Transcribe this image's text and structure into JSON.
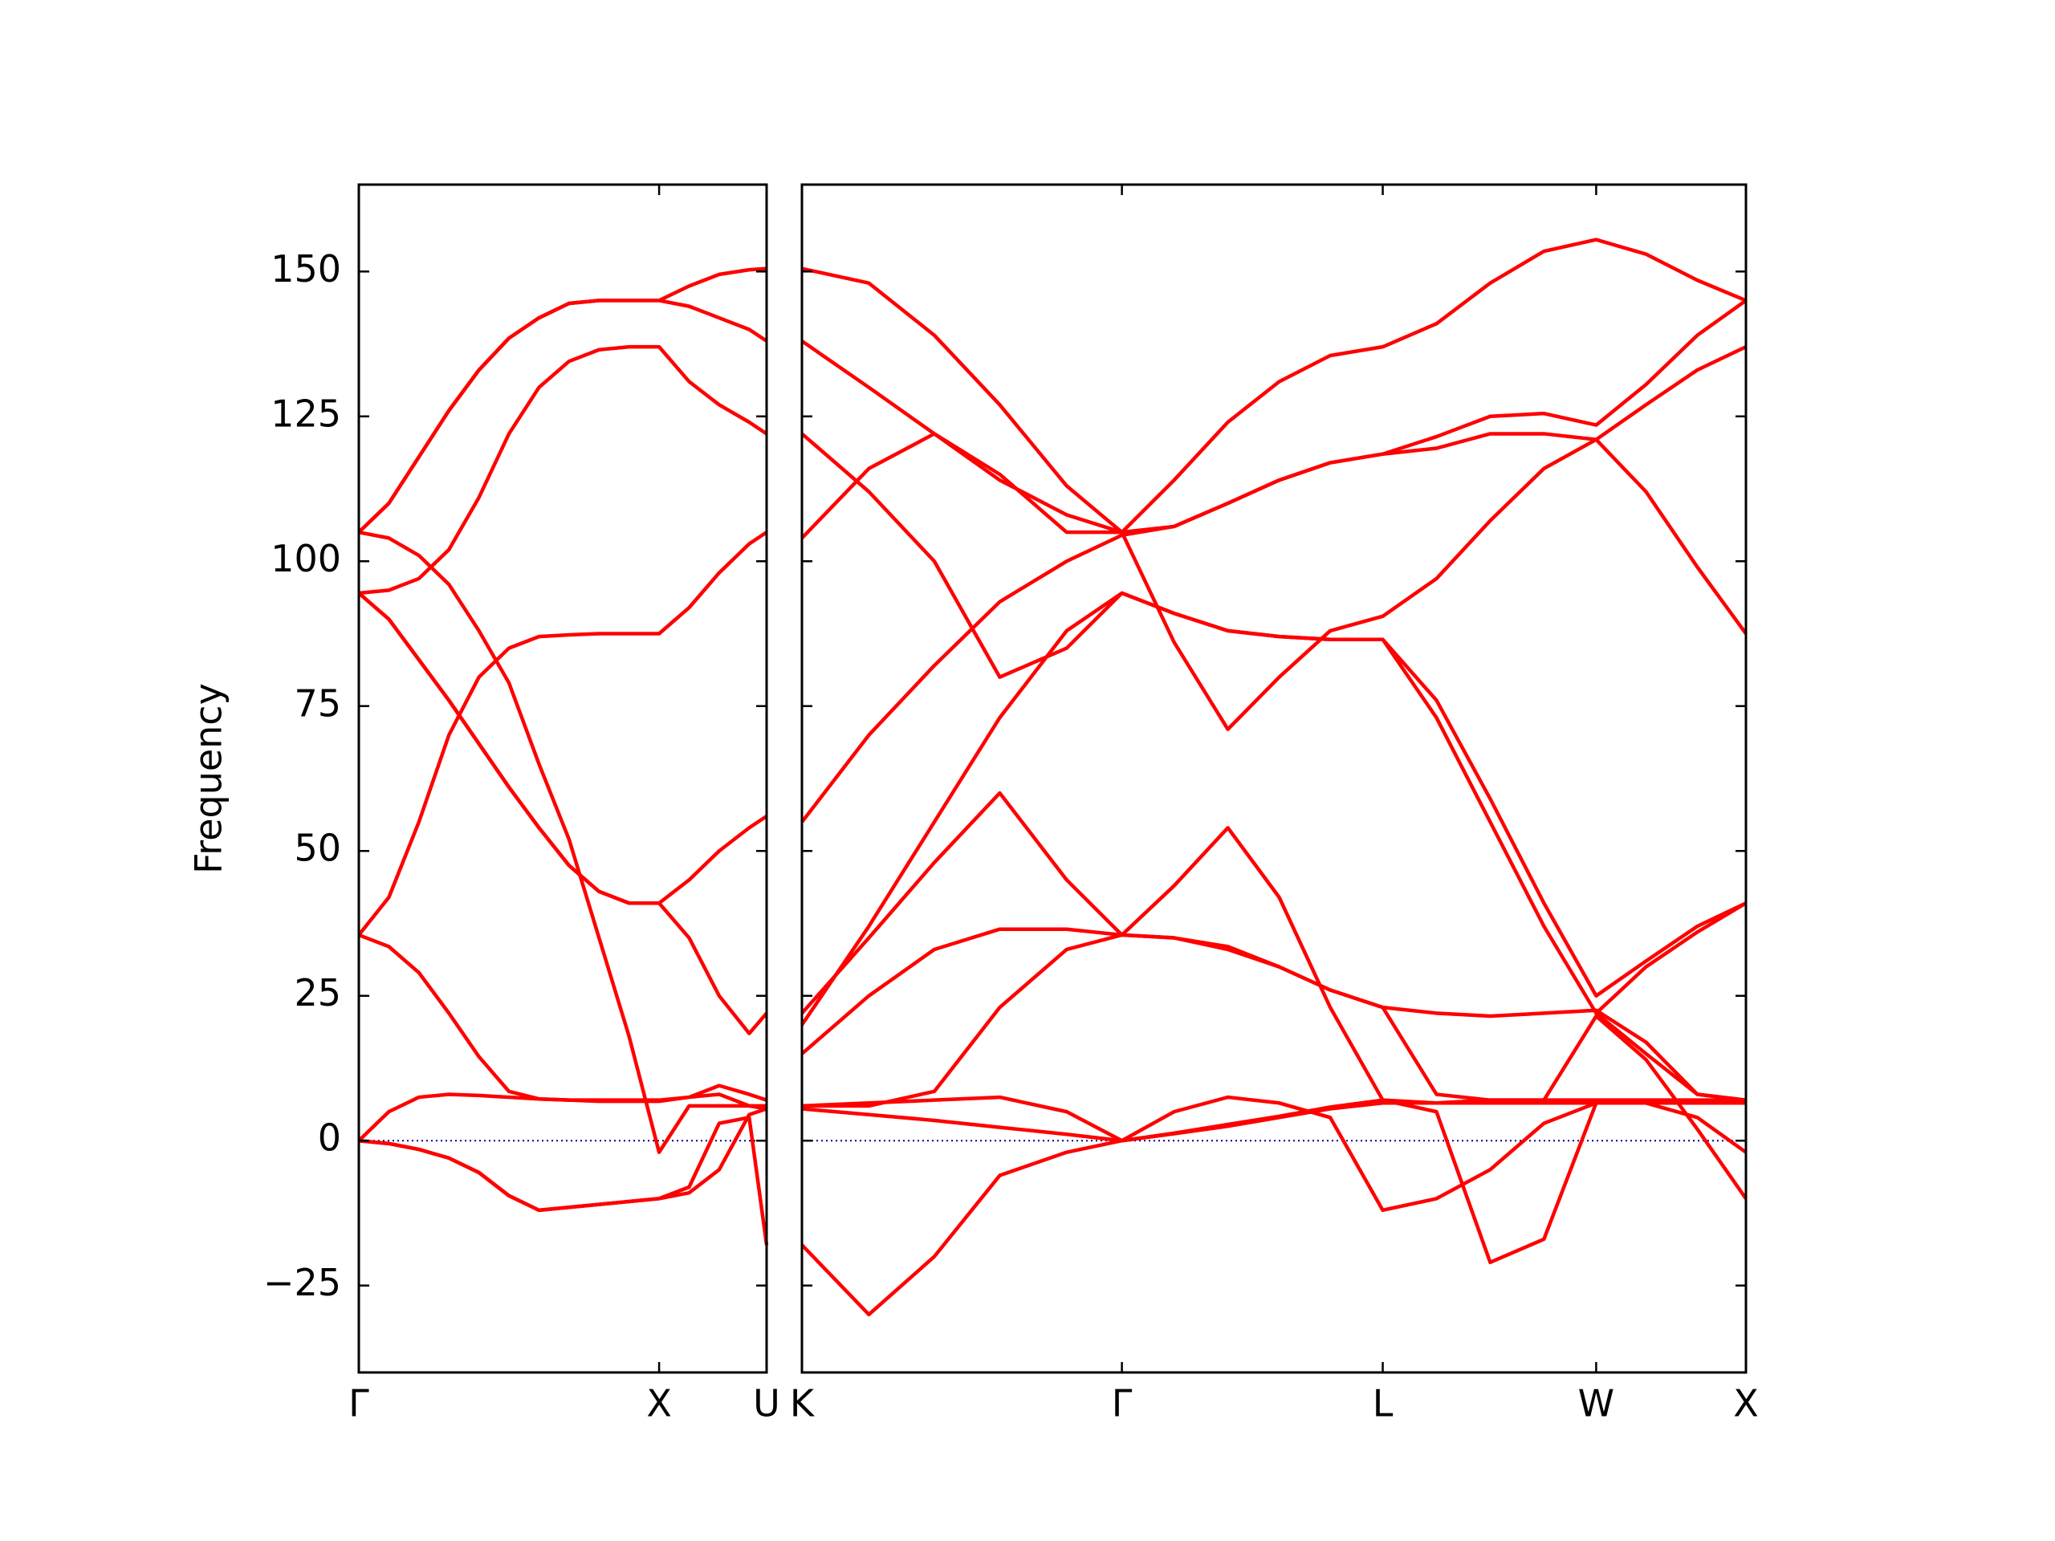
{
  "chart_data": [
    {
      "type": "line",
      "ylabel": "Frequency",
      "x": [
        0,
        0.1,
        0.2,
        0.3,
        0.4,
        0.5,
        0.6,
        0.7,
        0.8,
        0.9,
        1.0,
        1.1,
        1.2,
        1.3,
        1.358
      ],
      "series": [
        {
          "color": "#ff0000",
          "values": [
            105,
            110,
            118,
            126,
            133,
            138.5,
            142,
            144.5,
            145,
            145,
            145,
            147.5,
            149.5,
            150.3,
            150.5
          ]
        },
        {
          "color": "#ff0000",
          "values": [
            105,
            110,
            118,
            126,
            133,
            138.5,
            142,
            144.5,
            145,
            145,
            145,
            144,
            142,
            140,
            138
          ]
        },
        {
          "color": "#ff0000",
          "values": [
            94.5,
            95,
            97,
            102,
            111,
            122,
            130,
            134.5,
            136.5,
            137,
            137,
            131,
            127,
            124,
            122
          ]
        },
        {
          "color": "#ff0000",
          "values": [
            105,
            104,
            101,
            96,
            88,
            79,
            65,
            52,
            35,
            18,
            -2,
            6,
            6,
            6,
            6
          ]
        },
        {
          "color": "#ff0000",
          "values": [
            94.5,
            90,
            83,
            76,
            68.5,
            61,
            54,
            47.5,
            43,
            41,
            41,
            45,
            50,
            54,
            56
          ]
        },
        {
          "color": "#ff0000",
          "values": [
            94.5,
            90,
            83,
            76,
            68.5,
            61,
            54,
            47.5,
            43,
            41,
            41,
            35,
            25,
            18.5,
            22
          ]
        },
        {
          "color": "#ff0000",
          "values": [
            35.5,
            42,
            55,
            70,
            80,
            85,
            87,
            87.3,
            87.5,
            87.5,
            87.5,
            92,
            98,
            103,
            105
          ]
        },
        {
          "color": "#ff0000",
          "values": [
            35.5,
            33.5,
            29,
            22,
            14.5,
            8.5,
            7.2,
            7,
            7,
            7,
            7,
            7.5,
            9.5,
            8,
            7
          ]
        },
        {
          "color": "#ff0000",
          "values": [
            0,
            5,
            7.5,
            8,
            7.8,
            7.5,
            7.2,
            7,
            6.8,
            6.8,
            6.8,
            7.5,
            8,
            6,
            5.5
          ]
        },
        {
          "color": "#ff0000",
          "values": [
            0,
            -0.5,
            -1.5,
            -3,
            -5.5,
            -9.5,
            -12,
            -11.5,
            -11,
            -10.5,
            -10,
            -9,
            -5,
            4.5,
            5.5
          ]
        },
        {
          "color": "#ff0000",
          "values": [
            0,
            -0.5,
            -1.5,
            -3,
            -5.5,
            -9.5,
            -12,
            -11.5,
            -11,
            -10.5,
            -10,
            -8,
            3,
            4,
            -18
          ]
        }
      ],
      "xlim": [
        0,
        1.358
      ],
      "xticks": [
        {
          "value": 0,
          "label": "Γ"
        },
        {
          "value": 1.0,
          "label": "X"
        },
        {
          "value": 1.358,
          "label": "U"
        }
      ],
      "ylim": [
        -40,
        165
      ],
      "yticks": [
        {
          "value": -25,
          "label": "−25"
        },
        0,
        25,
        50,
        75,
        100,
        125,
        150
      ],
      "hline": 0,
      "hline_color": "#00008b"
    },
    {
      "type": "line",
      "x": [
        1.358,
        1.581,
        1.799,
        2.017,
        2.24,
        2.424,
        2.598,
        2.777,
        2.948,
        3.118,
        3.293,
        3.472,
        3.651,
        3.83,
        4.004,
        4.17,
        4.341,
        4.503
      ],
      "series": [
        {
          "color": "#ff0000",
          "values": [
            150.5,
            148,
            139,
            127,
            113,
            105,
            114,
            124,
            131,
            135.5,
            137,
            141,
            148,
            153.5,
            155.5,
            153,
            148.5,
            145
          ]
        },
        {
          "color": "#ff0000",
          "values": [
            138,
            130,
            122,
            114,
            108,
            105,
            106,
            110,
            114,
            117,
            118.5,
            121.5,
            125,
            125.5,
            123.5,
            130.5,
            139,
            145
          ]
        },
        {
          "color": "#ff0000",
          "values": [
            122,
            112,
            100,
            80,
            85,
            94.5,
            91,
            88,
            87,
            86.5,
            86.5,
            76,
            59,
            41,
            25,
            31,
            37,
            41
          ]
        },
        {
          "color": "#ff0000",
          "values": [
            104,
            116,
            122,
            115,
            105,
            105,
            86,
            71,
            80,
            88,
            90.5,
            97,
            107,
            116,
            121,
            127,
            133,
            137
          ]
        },
        {
          "color": "#ff0000",
          "values": [
            55,
            70,
            82,
            93,
            100,
            104.5,
            106,
            110,
            114,
            117,
            118.5,
            119.5,
            122,
            122,
            121,
            112,
            99,
            87.5
          ]
        },
        {
          "color": "#ff0000",
          "values": [
            20,
            37,
            55,
            73,
            88,
            94.5,
            91,
            88,
            87,
            86.5,
            86.5,
            73,
            55,
            37,
            22,
            15,
            8,
            7
          ]
        },
        {
          "color": "#ff0000",
          "values": [
            15,
            25,
            33,
            36.5,
            36.5,
            35.5,
            35,
            33,
            30,
            26,
            23,
            22,
            21.5,
            22,
            22.5,
            17,
            8,
            7
          ]
        },
        {
          "color": "#ff0000",
          "values": [
            22,
            35,
            48,
            60,
            45,
            35.5,
            44,
            54,
            42,
            23,
            7,
            6.5,
            6.5,
            6.5,
            6.5,
            6.5,
            6.5,
            6.5
          ]
        },
        {
          "color": "#ff0000",
          "values": [
            6,
            6,
            8.5,
            23,
            33,
            35.5,
            35,
            33.5,
            30,
            26,
            23,
            8,
            7,
            7,
            7,
            7,
            7,
            7
          ]
        },
        {
          "color": "#ff0000",
          "values": [
            6,
            6.5,
            7,
            7.5,
            5,
            0,
            5,
            7.5,
            6.5,
            4,
            -12,
            -10,
            -5,
            3,
            6.5,
            6.5,
            6.5,
            6.5
          ]
        },
        {
          "color": "#ff0000",
          "values": [
            5.5,
            4.5,
            3.5,
            2.3,
            1.1,
            0,
            1.3,
            2.8,
            4.2,
            5.8,
            7,
            5,
            -21,
            -17,
            6.5,
            6.5,
            4,
            -2
          ]
        },
        {
          "color": "#ff0000",
          "values": [
            -18,
            -30,
            -20,
            -6,
            -2,
            0,
            1.2,
            2.5,
            4,
            5.5,
            6.5,
            6.5,
            7,
            7,
            21.5,
            14,
            2,
            -10
          ]
        },
        {
          "color": "#ff0000",
          "values": [
            null,
            null,
            null,
            null,
            null,
            null,
            null,
            null,
            null,
            null,
            null,
            null,
            null,
            null,
            22,
            30,
            36,
            41
          ]
        }
      ],
      "xlim": [
        1.358,
        4.503
      ],
      "xticks": [
        {
          "value": 1.358,
          "label": "K"
        },
        {
          "value": 2.424,
          "label": "Γ"
        },
        {
          "value": 3.293,
          "label": "L"
        },
        {
          "value": 4.004,
          "label": "W"
        },
        {
          "value": 4.503,
          "label": "X"
        }
      ],
      "ylim": [
        -40,
        165
      ],
      "yticks": [
        -25,
        0,
        25,
        50,
        75,
        100,
        125,
        150
      ],
      "hline": 0,
      "hline_color": "#00008b"
    }
  ]
}
